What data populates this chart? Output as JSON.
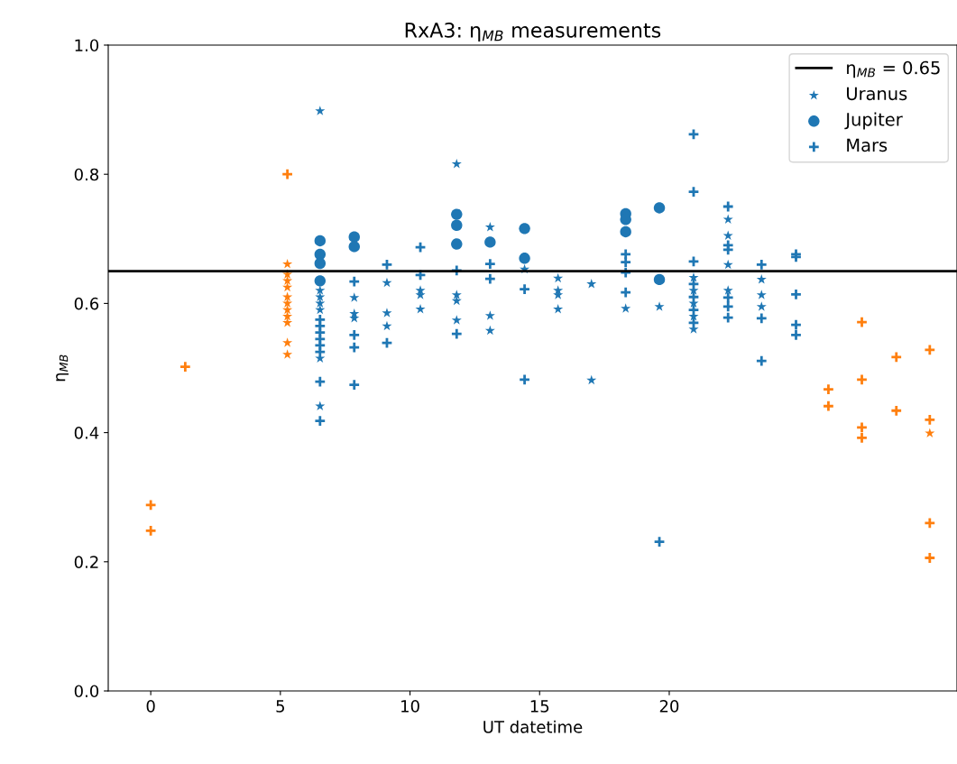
{
  "chart_data": {
    "type": "scatter",
    "title": "RxA3: η$_{MB}$ measurements",
    "xlabel": "UT datetime",
    "ylabel": "η$_{MB}$",
    "xlim": [
      -1.64,
      31.1
    ],
    "ylim": [
      0,
      1.0
    ],
    "xticks": [
      0,
      5,
      10,
      15,
      20
    ],
    "yticks": [
      {
        "value": 0,
        "label": "0.0"
      },
      0.2,
      0.4,
      0.6,
      0.8,
      {
        "value": 1.0,
        "label": "1.0"
      }
    ],
    "grid": false,
    "legend": "top right",
    "ref_lines": [
      {
        "axis": "y",
        "value": 0.65,
        "label": "η$_{MB}$ = 0.65",
        "color": "#000000",
        "line_style": "solid"
      }
    ],
    "series": [
      {
        "name": "Uranus",
        "color": "#1f77b4",
        "marker": "star",
        "x": [
          6.53,
          6.53,
          6.53,
          6.53,
          6.53,
          6.53,
          6.53,
          7.85,
          7.85,
          7.85,
          9.11,
          9.11,
          9.11,
          10.4,
          10.4,
          10.4,
          11.8,
          11.8,
          11.8,
          11.8,
          13.09,
          13.09,
          13.09,
          14.42,
          15.71,
          15.71,
          15.71,
          15.71,
          17.0,
          17.0,
          18.32,
          19.62,
          20.94,
          20.94,
          20.94,
          20.94,
          20.94,
          22.27,
          22.27,
          22.27,
          22.27,
          23.56,
          23.56,
          23.56
        ],
        "values": [
          0.898,
          0.62,
          0.61,
          0.6,
          0.59,
          0.515,
          0.441,
          0.609,
          0.584,
          0.577,
          0.632,
          0.585,
          0.565,
          0.62,
          0.613,
          0.591,
          0.816,
          0.613,
          0.604,
          0.574,
          0.718,
          0.581,
          0.558,
          0.653,
          0.639,
          0.62,
          0.613,
          0.591,
          0.63,
          0.481,
          0.592,
          0.595,
          0.64,
          0.62,
          0.6,
          0.58,
          0.56,
          0.73,
          0.705,
          0.66,
          0.62,
          0.637,
          0.613,
          0.595
        ]
      },
      {
        "name": "Jupiter",
        "color": "#1f77b4",
        "marker": "circle",
        "x": [
          6.53,
          6.53,
          6.53,
          6.53,
          7.85,
          7.85,
          11.8,
          11.8,
          11.8,
          13.09,
          14.42,
          14.42,
          18.32,
          18.32,
          18.32,
          19.62,
          19.62
        ],
        "values": [
          0.697,
          0.676,
          0.662,
          0.635,
          0.703,
          0.688,
          0.738,
          0.721,
          0.692,
          0.695,
          0.716,
          0.67,
          0.739,
          0.73,
          0.711,
          0.748,
          0.637
        ]
      },
      {
        "name": "Mars",
        "color": "#1f77b4",
        "marker": "cross",
        "x": [
          6.53,
          6.53,
          6.53,
          6.53,
          6.53,
          6.53,
          6.53,
          6.53,
          7.85,
          7.85,
          7.85,
          7.85,
          9.11,
          9.11,
          10.4,
          10.4,
          11.8,
          11.8,
          13.09,
          13.09,
          14.42,
          14.42,
          18.32,
          18.32,
          18.32,
          18.32,
          19.62,
          20.94,
          20.94,
          20.94,
          20.94,
          20.94,
          20.94,
          20.94,
          22.27,
          22.27,
          22.27,
          22.27,
          22.27,
          22.27,
          23.56,
          23.56,
          23.56,
          24.89,
          24.89,
          24.89,
          24.89,
          24.89
        ],
        "values": [
          0.575,
          0.565,
          0.555,
          0.545,
          0.535,
          0.525,
          0.479,
          0.418,
          0.634,
          0.551,
          0.532,
          0.474,
          0.66,
          0.539,
          0.687,
          0.644,
          0.651,
          0.553,
          0.661,
          0.638,
          0.622,
          0.482,
          0.676,
          0.664,
          0.648,
          0.617,
          0.231,
          0.862,
          0.773,
          0.665,
          0.63,
          0.61,
          0.59,
          0.57,
          0.75,
          0.69,
          0.683,
          0.609,
          0.595,
          0.578,
          0.66,
          0.577,
          0.511,
          0.676,
          0.672,
          0.614,
          0.567,
          0.551
        ]
      },
      {
        "color": "#ff7f0e",
        "marker": "star",
        "x": [
          5.27,
          5.27,
          5.27,
          5.27,
          5.27,
          5.27,
          5.27,
          5.27,
          5.27,
          5.27,
          5.27,
          30.05
        ],
        "values": [
          0.661,
          0.645,
          0.635,
          0.625,
          0.61,
          0.6,
          0.59,
          0.58,
          0.57,
          0.539,
          0.521,
          0.399
        ]
      },
      {
        "color": "#ff7f0e",
        "marker": "cross",
        "x": [
          0,
          0,
          1.33,
          5.27,
          26.14,
          26.14,
          27.43,
          27.43,
          27.43,
          27.43,
          28.76,
          28.76,
          30.05,
          30.05,
          30.05,
          30.05
        ],
        "values": [
          0.288,
          0.248,
          0.502,
          0.8,
          0.467,
          0.441,
          0.571,
          0.482,
          0.408,
          0.392,
          0.517,
          0.434,
          0.528,
          0.42,
          0.26,
          0.206
        ]
      }
    ]
  }
}
